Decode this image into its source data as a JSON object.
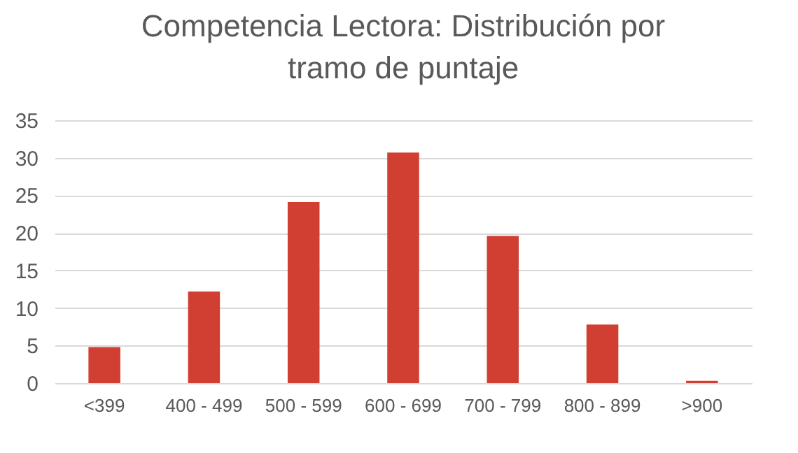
{
  "chart_data": {
    "type": "bar",
    "title": [
      "Competencia Lectora: Distribución por",
      "tramo de puntaje"
    ],
    "categories": [
      "<399",
      "400 - 499",
      "500 - 599",
      "600 - 699",
      "700 - 799",
      "800 - 899",
      ">900"
    ],
    "values": [
      4.8,
      12.2,
      24.1,
      30.7,
      19.6,
      7.8,
      0.3
    ],
    "color": "#d13f33",
    "ylim": [
      0,
      35
    ],
    "yticks": [
      0,
      5,
      10,
      15,
      20,
      25,
      30,
      35
    ],
    "grid": "y"
  }
}
